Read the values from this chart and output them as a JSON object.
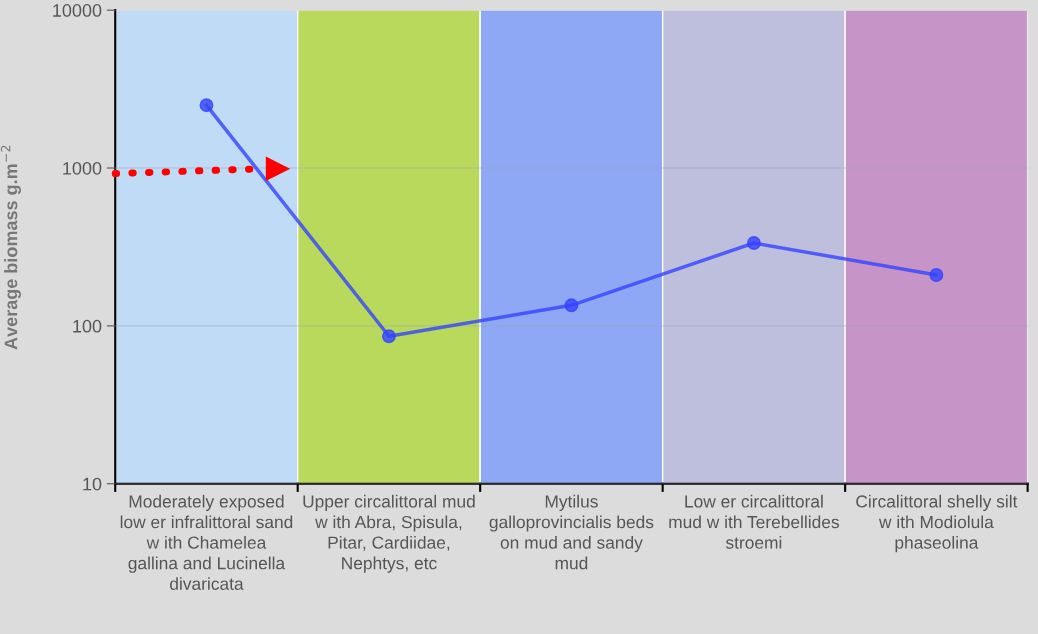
{
  "chart_data": {
    "type": "bar",
    "ylabel": "Average biomass g.m$^{−2}$",
    "log": true,
    "ylim": [
      10,
      10000
    ],
    "yticks": [
      10,
      100,
      1000,
      10000
    ],
    "grid": "y",
    "marker": "circle",
    "categories": [
      "Moderately exposed low er infralittoral sand  w ith Chamelea gallina and Lucinella divaricata",
      "Upper circalittoral mud w ith Abra, Spisula, Pitar, Cardiidae, Nephtys, etc",
      "Mytilus galloprovincialis beds on mud and sandy mud",
      "Low er circalittoral mud w ith Terebellides stroemi",
      "Circalittoral shelly silt w ith Modiolula phaseolina"
    ],
    "series": [
      {
        "colors": [
          "#c0dbf5",
          "#b9d95c",
          "#8fa8f5",
          "#bebedd",
          "#c694c6"
        ],
        "values": [
          10000,
          10000,
          10000,
          10000,
          10000
        ]
      },
      {
        "type": "line",
        "color": "#3344ff",
        "values": [
          2500,
          86,
          135,
          335,
          210
        ]
      }
    ]
  }
}
